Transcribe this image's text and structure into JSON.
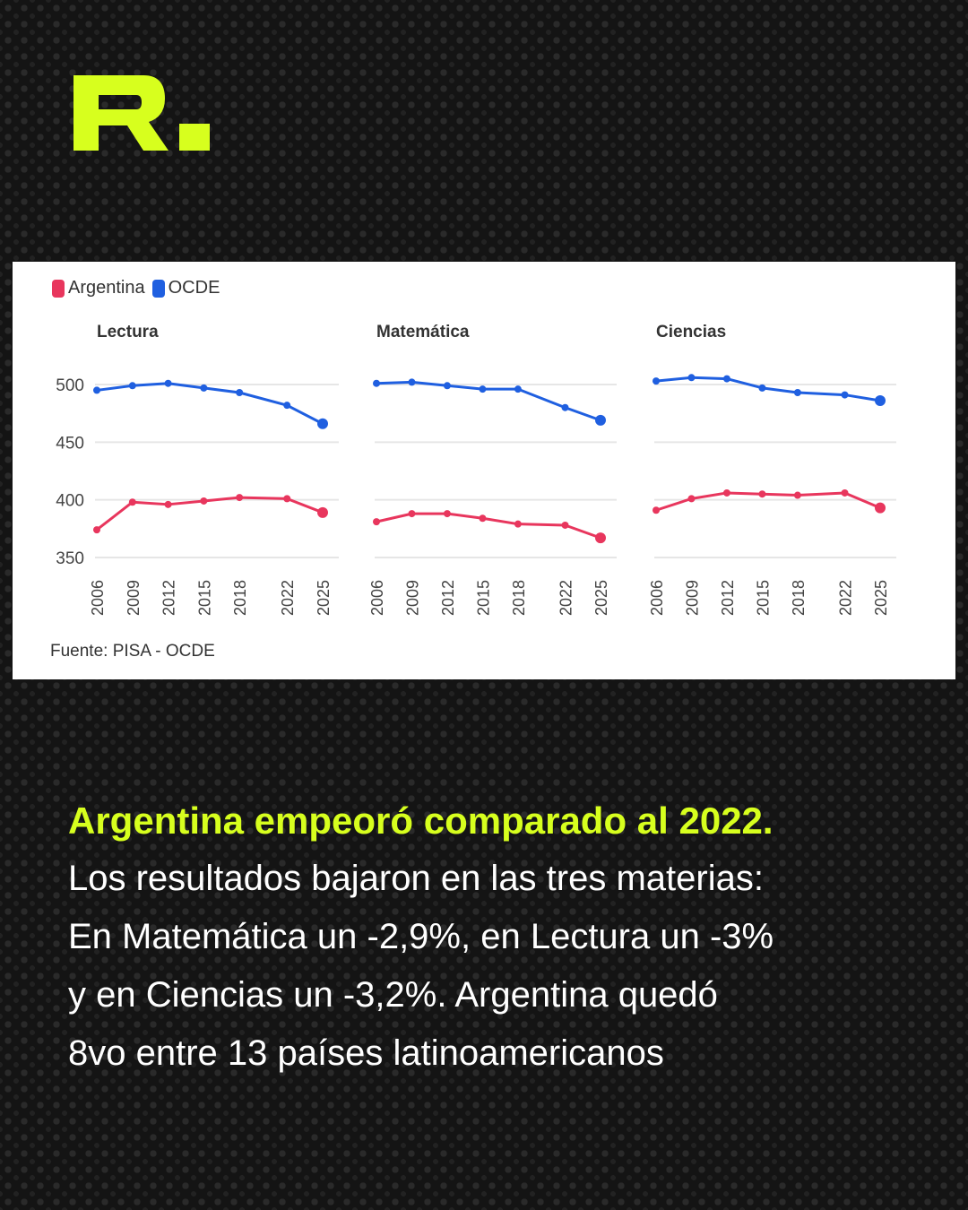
{
  "brand": {
    "logo_text": "R.",
    "accent": "#d7ff1e"
  },
  "legend": [
    {
      "name": "Argentina",
      "color": "#e8365d"
    },
    {
      "name": "OCDE",
      "color": "#1f5fe0"
    }
  ],
  "source": "Fuente: PISA - OCDE",
  "chart_data": [
    {
      "type": "line",
      "title": "Lectura",
      "x": [
        "2006",
        "2009",
        "2012",
        "2015",
        "2018",
        "2022",
        "2025"
      ],
      "ylim": [
        350,
        500
      ],
      "yticks": [
        "350",
        "400",
        "450",
        "500"
      ],
      "series": [
        {
          "name": "Argentina",
          "values": [
            374,
            398,
            396,
            399,
            402,
            401,
            389
          ]
        },
        {
          "name": "OCDE",
          "values": [
            495,
            499,
            501,
            497,
            493,
            482,
            466
          ]
        }
      ]
    },
    {
      "type": "line",
      "title": "Matemática",
      "x": [
        "2006",
        "2009",
        "2012",
        "2015",
        "2018",
        "2022",
        "2025"
      ],
      "ylim": [
        350,
        500
      ],
      "series": [
        {
          "name": "Argentina",
          "values": [
            381,
            388,
            388,
            384,
            379,
            378,
            367
          ]
        },
        {
          "name": "OCDE",
          "values": [
            501,
            502,
            499,
            496,
            496,
            480,
            469
          ]
        }
      ]
    },
    {
      "type": "line",
      "title": "Ciencias",
      "x": [
        "2006",
        "2009",
        "2012",
        "2015",
        "2018",
        "2022",
        "2025"
      ],
      "ylim": [
        350,
        500
      ],
      "series": [
        {
          "name": "Argentina",
          "values": [
            391,
            401,
            406,
            405,
            404,
            406,
            393
          ]
        },
        {
          "name": "OCDE",
          "values": [
            503,
            506,
            505,
            497,
            493,
            491,
            486
          ]
        }
      ]
    }
  ],
  "text": {
    "headline": "Argentina empeoró comparado al 2022.",
    "lines": [
      "Los resultados bajaron en las tres materias:",
      "En Matemática un -2,9%, en Lectura un -3%",
      "y en Ciencias un -3,2%. Argentina quedó",
      "8vo entre 13 países latinoamericanos"
    ]
  }
}
